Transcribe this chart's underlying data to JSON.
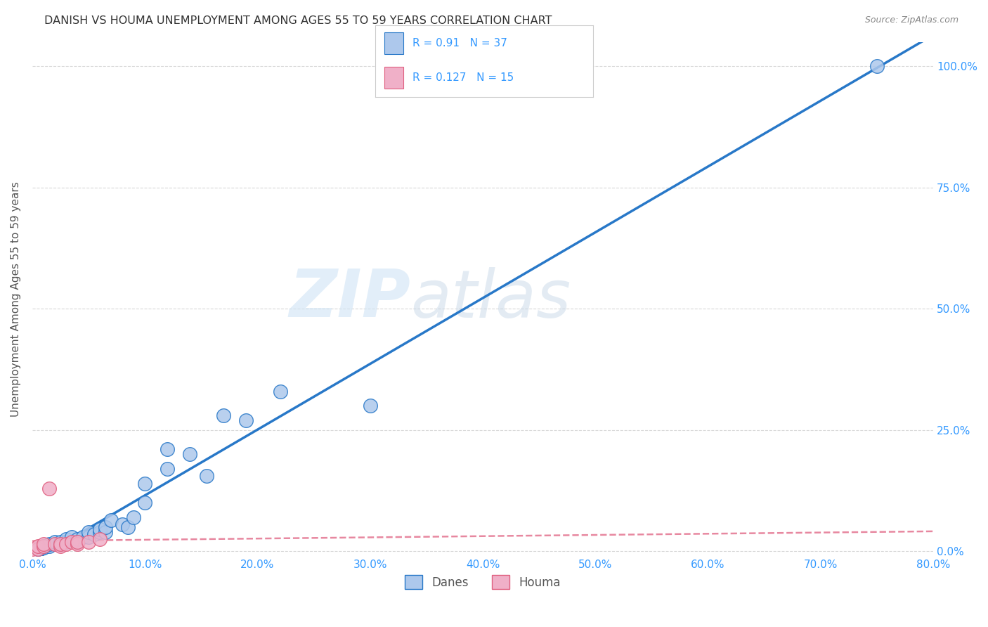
{
  "title": "DANISH VS HOUMA UNEMPLOYMENT AMONG AGES 55 TO 59 YEARS CORRELATION CHART",
  "source": "Source: ZipAtlas.com",
  "ylabel": "Unemployment Among Ages 55 to 59 years",
  "xlabel_ticks": [
    "0.0%",
    "10.0%",
    "20.0%",
    "30.0%",
    "40.0%",
    "50.0%",
    "60.0%",
    "70.0%",
    "80.0%"
  ],
  "ylabel_ticks_right": [
    "0.0%",
    "25.0%",
    "50.0%",
    "75.0%",
    "100.0%"
  ],
  "xlim": [
    0.0,
    80.0
  ],
  "ylim": [
    -1.0,
    105.0
  ],
  "danes_R": 0.91,
  "danes_N": 37,
  "houma_R": 0.127,
  "houma_N": 15,
  "danes_color": "#adc8ec",
  "danes_line_color": "#2878c8",
  "houma_color": "#f0b0c8",
  "houma_line_color": "#e06080",
  "danes_scatter_x": [
    0.5,
    1.0,
    1.0,
    1.5,
    1.5,
    2.0,
    2.0,
    2.5,
    2.5,
    3.0,
    3.0,
    3.5,
    4.0,
    4.0,
    4.5,
    5.0,
    5.0,
    5.5,
    6.0,
    6.0,
    6.5,
    6.5,
    7.0,
    8.0,
    8.5,
    9.0,
    10.0,
    10.0,
    12.0,
    12.0,
    14.0,
    15.5,
    17.0,
    19.0,
    22.0,
    30.0,
    75.0
  ],
  "danes_scatter_y": [
    0.5,
    0.8,
    1.0,
    1.0,
    1.5,
    1.5,
    2.0,
    1.5,
    2.0,
    2.0,
    2.5,
    3.0,
    2.0,
    2.5,
    3.0,
    3.0,
    4.0,
    3.5,
    4.0,
    4.5,
    4.0,
    5.0,
    6.5,
    5.5,
    5.0,
    7.0,
    10.0,
    14.0,
    17.0,
    21.0,
    20.0,
    15.5,
    28.0,
    27.0,
    33.0,
    30.0,
    100.0
  ],
  "houma_scatter_x": [
    0.0,
    0.5,
    0.5,
    1.0,
    1.0,
    1.5,
    2.0,
    2.5,
    2.5,
    3.0,
    3.5,
    4.0,
    4.0,
    5.0,
    6.0
  ],
  "houma_scatter_y": [
    0.5,
    0.5,
    1.0,
    1.0,
    1.5,
    13.0,
    1.5,
    1.0,
    1.5,
    1.5,
    2.0,
    1.5,
    2.0,
    2.0,
    2.5
  ],
  "watermark_zip": "ZIP",
  "watermark_atlas": "atlas",
  "background_color": "#ffffff",
  "grid_color": "#d8d8d8",
  "title_fontsize": 11.5,
  "source_fontsize": 9,
  "tick_fontsize": 11,
  "ylabel_fontsize": 11
}
